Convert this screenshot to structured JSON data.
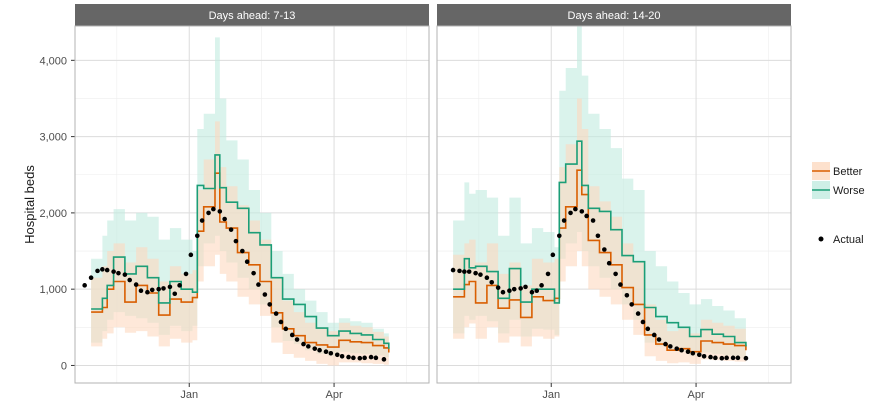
{
  "chart_data": {
    "type": "line",
    "ylabel": "Hospital beds",
    "y_ticks": [
      0,
      1000,
      2000,
      3000,
      4000
    ],
    "y_tick_labels": [
      "0",
      "1,000",
      "2,000",
      "3,000",
      "4,000"
    ],
    "x_ticks": [
      {
        "label": "Jan",
        "day": 61
      },
      {
        "label": "Apr",
        "day": 151
      }
    ],
    "x_domain_days": [
      -10,
      210
    ],
    "ylim": [
      -230,
      4450
    ],
    "grid": true,
    "legend": {
      "placement": "right",
      "items": [
        {
          "key": "better",
          "label": "Better"
        },
        {
          "key": "worse",
          "label": "Worse"
        },
        {
          "key": "actual",
          "label": "Actual"
        }
      ]
    },
    "colors": {
      "better": "#d95f02",
      "worse": "#1b9e77",
      "better_band": "#fdd9c0",
      "worse_band": "#c2ebe0",
      "actual": "#000000",
      "strip": "#666666",
      "panel_border": "#b3b3b3",
      "grid_major": "#dcdcdc",
      "grid_minor": "#eeeeee"
    },
    "facets": [
      {
        "title": "Days ahead: 7-13",
        "series": [
          {
            "key": "better",
            "name": "Better",
            "x": [
              0,
              7,
              10,
              14,
              21,
              28,
              35,
              42,
              49,
              56,
              63,
              66,
              70,
              77,
              80,
              84,
              91,
              98,
              105,
              112,
              119,
              126,
              133,
              140,
              147,
              154,
              161,
              168,
              175,
              182,
              185
            ],
            "y": [
              700,
              760,
              1000,
              1100,
              830,
              1050,
              950,
              660,
              870,
              830,
              890,
              1760,
              2080,
              2520,
              1880,
              1800,
              1480,
              1320,
              1100,
              690,
              480,
              390,
              300,
              270,
              240,
              330,
              310,
              300,
              260,
              230,
              170
            ]
          },
          {
            "key": "worse",
            "name": "Worse",
            "x": [
              0,
              7,
              10,
              14,
              21,
              28,
              35,
              42,
              49,
              56,
              63,
              66,
              70,
              77,
              80,
              84,
              91,
              98,
              105,
              112,
              119,
              126,
              133,
              140,
              147,
              154,
              161,
              168,
              175,
              182,
              185
            ],
            "y": [
              740,
              880,
              1050,
              1420,
              1200,
              1300,
              1150,
              820,
              1100,
              1000,
              960,
              2360,
              2320,
              2760,
              2330,
              2140,
              2060,
              1740,
              1580,
              1150,
              870,
              800,
              640,
              490,
              390,
              450,
              420,
              400,
              340,
              290,
              220
            ]
          },
          {
            "key": "actual",
            "name": "Actual",
            "x": [
              -4,
              0,
              4,
              7,
              10,
              14,
              17,
              21,
              24,
              28,
              31,
              35,
              38,
              42,
              45,
              49,
              52,
              55,
              59,
              62,
              66,
              69,
              73,
              76,
              80,
              83,
              87,
              90,
              94,
              97,
              101,
              104,
              108,
              111,
              115,
              118,
              121,
              125,
              128,
              132,
              135,
              139,
              142,
              146,
              149,
              153,
              156,
              160,
              163,
              167,
              170,
              174,
              177,
              182
            ],
            "y": [
              1050,
              1150,
              1240,
              1260,
              1250,
              1230,
              1210,
              1190,
              1120,
              1060,
              980,
              960,
              990,
              1000,
              1010,
              1030,
              940,
              1050,
              1200,
              1450,
              1700,
              1900,
              2000,
              2050,
              2020,
              1920,
              1780,
              1630,
              1500,
              1360,
              1210,
              1060,
              930,
              800,
              680,
              570,
              480,
              400,
              340,
              280,
              250,
              220,
              200,
              180,
              160,
              140,
              120,
              110,
              100,
              95,
              100,
              110,
              100,
              80
            ]
          }
        ],
        "bands": [
          {
            "key": "worse",
            "x": [
              0,
              7,
              10,
              14,
              21,
              28,
              35,
              42,
              49,
              56,
              63,
              66,
              70,
              77,
              80,
              84,
              91,
              98,
              105,
              112,
              119,
              126,
              133,
              140,
              147,
              154,
              161,
              168,
              175,
              182,
              185
            ],
            "lower": [
              300,
              450,
              600,
              700,
              650,
              620,
              560,
              400,
              520,
              450,
              520,
              1300,
              1600,
              1700,
              1500,
              1350,
              1150,
              1000,
              800,
              500,
              320,
              280,
              200,
              150,
              120,
              180,
              160,
              150,
              130,
              110,
              90
            ],
            "upper": [
              1400,
              1700,
              1900,
              2050,
              1900,
              2000,
              1950,
              1650,
              1800,
              1650,
              1500,
              3100,
              3300,
              4300,
              3500,
              2950,
              2700,
              2300,
              2000,
              1500,
              1200,
              1000,
              850,
              700,
              560,
              620,
              580,
              560,
              480,
              420,
              360
            ]
          },
          {
            "key": "better",
            "x": [
              0,
              7,
              10,
              14,
              21,
              28,
              35,
              42,
              49,
              56,
              63,
              66,
              70,
              77,
              80,
              84,
              91,
              98,
              105,
              112,
              119,
              126,
              133,
              140,
              147,
              154,
              161,
              168,
              175,
              182,
              185
            ],
            "lower": [
              250,
              350,
              420,
              500,
              430,
              450,
              380,
              250,
              350,
              300,
              330,
              1100,
              1300,
              1450,
              1200,
              1100,
              900,
              800,
              650,
              300,
              150,
              100,
              60,
              20,
              0,
              40,
              40,
              30,
              20,
              10,
              0
            ],
            "upper": [
              1150,
              1300,
              1500,
              1600,
              1350,
              1550,
              1400,
              1100,
              1300,
              1200,
              1250,
              2300,
              2700,
              3200,
              2600,
              2350,
              2100,
              1900,
              1650,
              1150,
              850,
              700,
              560,
              500,
              450,
              560,
              520,
              500,
              440,
              380,
              320
            ]
          }
        ]
      },
      {
        "title": "Days ahead: 14-20",
        "series": [
          {
            "key": "better",
            "name": "Better",
            "x": [
              0,
              7,
              10,
              14,
              21,
              28,
              35,
              42,
              49,
              56,
              63,
              66,
              70,
              77,
              80,
              84,
              91,
              98,
              105,
              112,
              119,
              126,
              133,
              140,
              147,
              154,
              161,
              168,
              175,
              182
            ],
            "y": [
              900,
              1060,
              1100,
              820,
              1050,
              750,
              860,
              630,
              900,
              850,
              880,
              1800,
              2080,
              2560,
              2240,
              1640,
              1480,
              1320,
              1020,
              800,
              400,
              280,
              200,
              220,
              180,
              320,
              300,
              280,
              260,
              200
            ]
          },
          {
            "key": "worse",
            "name": "Worse",
            "x": [
              0,
              7,
              10,
              14,
              21,
              28,
              35,
              42,
              49,
              56,
              63,
              66,
              70,
              77,
              80,
              84,
              91,
              98,
              105,
              112,
              119,
              126,
              133,
              140,
              147,
              154,
              161,
              168,
              175,
              182
            ],
            "y": [
              1000,
              1400,
              1280,
              1300,
              1230,
              880,
              1270,
              830,
              1000,
              1000,
              820,
              2400,
              2640,
              2940,
              2360,
              2060,
              2020,
              1780,
              1440,
              1360,
              760,
              640,
              560,
              500,
              380,
              470,
              410,
              380,
              300,
              250
            ]
          },
          {
            "key": "actual",
            "name": "Actual",
            "x": [
              0,
              4,
              7,
              10,
              14,
              17,
              21,
              24,
              28,
              31,
              35,
              38,
              42,
              45,
              49,
              52,
              55,
              59,
              62,
              66,
              69,
              73,
              76,
              80,
              83,
              87,
              90,
              94,
              97,
              101,
              104,
              108,
              111,
              115,
              118,
              121,
              125,
              128,
              132,
              135,
              139,
              142,
              146,
              149,
              153,
              156,
              160,
              163,
              167,
              170,
              174,
              177,
              182
            ],
            "y": [
              1250,
              1240,
              1230,
              1230,
              1210,
              1190,
              1150,
              1090,
              1020,
              960,
              980,
              1000,
              1010,
              1030,
              960,
              980,
              1050,
              1200,
              1450,
              1700,
              1900,
              2000,
              2050,
              2020,
              1960,
              1900,
              1700,
              1520,
              1340,
              1200,
              1060,
              920,
              800,
              680,
              570,
              480,
              400,
              340,
              280,
              250,
              220,
              200,
              180,
              160,
              140,
              120,
              110,
              100,
              95,
              100,
              100,
              100,
              95
            ]
          }
        ],
        "bands": [
          {
            "key": "worse",
            "x": [
              0,
              7,
              10,
              14,
              21,
              28,
              35,
              42,
              49,
              56,
              63,
              66,
              70,
              77,
              80,
              84,
              91,
              98,
              105,
              112,
              119,
              126,
              133,
              140,
              147,
              154,
              161,
              168,
              175,
              182
            ],
            "lower": [
              420,
              650,
              600,
              650,
              580,
              420,
              600,
              380,
              480,
              470,
              400,
              1400,
              1600,
              1750,
              1500,
              1300,
              1150,
              1000,
              800,
              600,
              300,
              250,
              200,
              180,
              120,
              170,
              150,
              130,
              100,
              80
            ],
            "upper": [
              1900,
              2400,
              2250,
              2300,
              2200,
              1700,
              2200,
              1600,
              1800,
              1750,
              1550,
              3600,
              3900,
              4450,
              3800,
              3300,
              3100,
              2850,
              2450,
              2300,
              1500,
              1300,
              1100,
              950,
              800,
              870,
              780,
              720,
              620,
              520
            ]
          },
          {
            "key": "better",
            "x": [
              0,
              7,
              10,
              14,
              21,
              28,
              35,
              42,
              49,
              56,
              63,
              66,
              70,
              77,
              80,
              84,
              91,
              98,
              105,
              112,
              119,
              126,
              133,
              140,
              147,
              154,
              161,
              168,
              175,
              182
            ],
            "lower": [
              350,
              500,
              550,
              350,
              500,
              300,
              380,
              250,
              380,
              350,
              380,
              1100,
              1300,
              1500,
              1300,
              1000,
              900,
              800,
              600,
              400,
              120,
              60,
              30,
              40,
              20,
              80,
              70,
              60,
              50,
              30
            ],
            "upper": [
              1450,
              1600,
              1650,
              1350,
              1600,
              1200,
              1350,
              1050,
              1400,
              1350,
              1400,
              2600,
              2900,
              3500,
              3100,
              2350,
              2150,
              1950,
              1600,
              1350,
              800,
              600,
              450,
              480,
              420,
              600,
              560,
              520,
              480,
              400
            ]
          }
        ]
      }
    ]
  }
}
